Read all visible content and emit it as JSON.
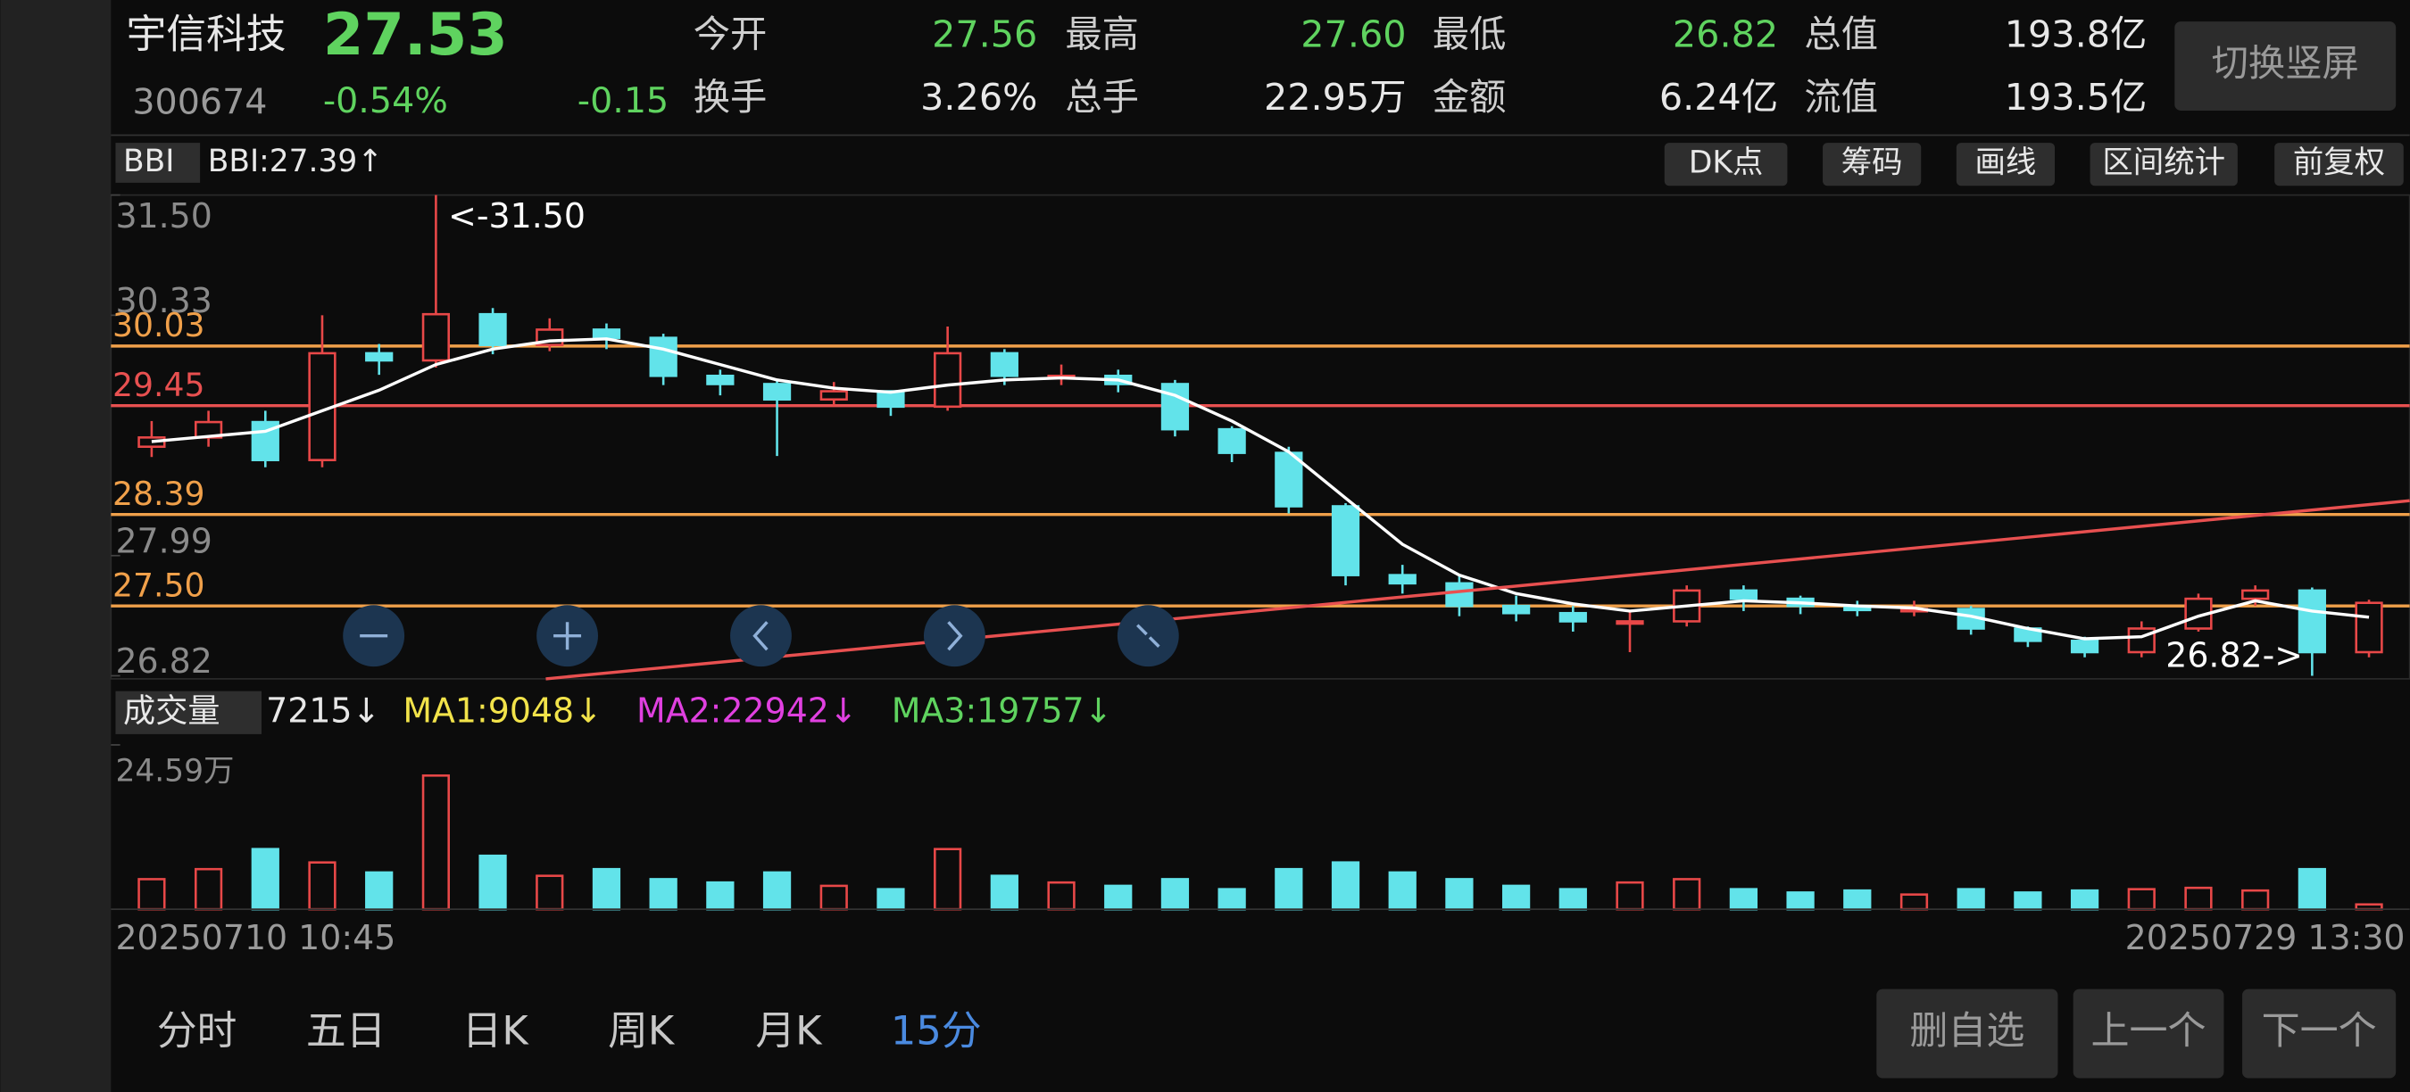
{
  "header": {
    "name": "宇信科技",
    "price": "27.53",
    "code": "300674",
    "change_pct": "-0.54%",
    "change": "-0.15",
    "stats": [
      {
        "label": "今开",
        "value": "27.56"
      },
      {
        "label": "最高",
        "value": "27.60"
      },
      {
        "label": "最低",
        "value": "26.82"
      },
      {
        "label": "总值",
        "value": "193.8亿"
      },
      {
        "label": "换手",
        "value": "3.26%"
      },
      {
        "label": "总手",
        "value": "22.95万"
      },
      {
        "label": "金额",
        "value": "6.24亿"
      },
      {
        "label": "流值",
        "value": "193.5亿"
      }
    ],
    "switch_button": "切换竖屏"
  },
  "toolbar": {
    "indicator": "BBI",
    "indicator_value": "BBI:27.39↑",
    "buttons": [
      "DK点",
      "筹码",
      "画线",
      "区间统计",
      "前复权"
    ]
  },
  "chart_data": [
    {
      "type": "candlestick",
      "ylim": [
        26.82,
        31.5
      ],
      "yticks": [
        {
          "value": 31.5,
          "label": "31.50"
        },
        30.33,
        27.99,
        26.82
      ],
      "levels": [
        {
          "value": 30.03,
          "label": "30.03",
          "color": "#f0a04a"
        },
        {
          "value": 29.45,
          "label": "29.45",
          "color": "#e85050"
        },
        {
          "value": 28.39,
          "label": "28.39",
          "color": "#f0a04a"
        },
        {
          "value": 27.5,
          "label": "27.50",
          "color": "#f0a04a"
        }
      ],
      "up_color": "#e84848",
      "down_color": "#62e3ea",
      "bbi_color": "#ffffff",
      "annotations": [
        "<-31.50",
        "26.82->"
      ],
      "open": [
        29.05,
        29.14,
        29.29,
        28.92,
        29.96,
        29.89,
        30.34,
        30.04,
        30.19,
        30.11,
        29.74,
        29.66,
        29.51,
        29.59,
        29.44,
        29.96,
        29.74,
        29.74,
        29.66,
        29.22,
        28.99,
        28.47,
        27.8,
        27.72,
        27.5,
        27.43,
        27.35,
        27.35,
        27.65,
        27.57,
        27.5,
        27.46,
        27.47,
        27.28,
        27.16,
        27.05,
        27.28,
        27.57,
        27.65,
        27.05
      ],
      "high": [
        29.3,
        29.4,
        29.4,
        30.33,
        30.05,
        31.5,
        30.4,
        30.3,
        30.25,
        30.15,
        29.8,
        29.7,
        29.68,
        29.6,
        30.22,
        30.0,
        29.85,
        29.8,
        29.7,
        29.25,
        29.05,
        28.5,
        27.9,
        27.8,
        27.6,
        27.5,
        27.45,
        27.7,
        27.7,
        27.6,
        27.55,
        27.55,
        27.5,
        27.3,
        27.2,
        27.35,
        27.62,
        27.7,
        27.68,
        27.56
      ],
      "low": [
        28.95,
        29.05,
        28.85,
        28.85,
        29.75,
        29.82,
        29.95,
        29.98,
        30.0,
        29.65,
        29.55,
        28.96,
        29.45,
        29.35,
        29.4,
        29.65,
        29.65,
        29.58,
        29.15,
        28.9,
        28.4,
        27.7,
        27.62,
        27.4,
        27.35,
        27.25,
        27.05,
        27.3,
        27.45,
        27.42,
        27.4,
        27.4,
        27.22,
        27.1,
        27.0,
        27.0,
        27.25,
        27.5,
        26.82,
        27.0
      ],
      "close": [
        29.14,
        29.29,
        28.92,
        29.96,
        29.89,
        30.34,
        30.04,
        30.19,
        30.11,
        29.74,
        29.66,
        29.51,
        29.59,
        29.44,
        29.96,
        29.74,
        29.74,
        29.66,
        29.22,
        28.99,
        28.47,
        27.8,
        27.72,
        27.5,
        27.43,
        27.35,
        27.35,
        27.65,
        27.57,
        27.5,
        27.46,
        27.47,
        27.28,
        27.16,
        27.05,
        27.28,
        27.57,
        27.65,
        27.05,
        27.53
      ],
      "bbi": [
        29.1,
        29.15,
        29.2,
        29.4,
        29.6,
        29.85,
        30.0,
        30.08,
        30.1,
        30.0,
        29.85,
        29.7,
        29.62,
        29.58,
        29.65,
        29.7,
        29.72,
        29.7,
        29.55,
        29.3,
        29.0,
        28.55,
        28.1,
        27.8,
        27.62,
        27.52,
        27.45,
        27.5,
        27.55,
        27.53,
        27.5,
        27.48,
        27.4,
        27.28,
        27.18,
        27.2,
        27.4,
        27.55,
        27.45,
        27.39
      ]
    },
    {
      "type": "bar",
      "selector": "成交量",
      "current": "7215↓",
      "ma_labels": [
        {
          "text": "MA1:9048↓",
          "color": "#f2e34a"
        },
        {
          "text": "MA2:22942↓",
          "color": "#e040e0"
        },
        {
          "text": "MA3:19757↓",
          "color": "#5fd35f"
        }
      ],
      "ylim": [
        0,
        245900
      ],
      "yticks": [
        {
          "value": 245900,
          "label": "24.59万"
        }
      ],
      "values": [
        45000,
        60000,
        90000,
        70000,
        55000,
        200000,
        80000,
        50000,
        60000,
        45000,
        40000,
        55000,
        35000,
        30000,
        90000,
        50000,
        40000,
        35000,
        45000,
        30000,
        60000,
        70000,
        55000,
        45000,
        35000,
        30000,
        40000,
        45000,
        30000,
        25000,
        28000,
        22000,
        30000,
        25000,
        28000,
        30000,
        32000,
        28000,
        60000,
        7215
      ],
      "x_labels": [
        "20250710 10:45",
        "20250729 13:30"
      ]
    }
  ],
  "footer": {
    "tabs": [
      "分时",
      "五日",
      "日K",
      "周K",
      "月K",
      "15分"
    ],
    "buttons": [
      "删自选",
      "上一个",
      "下一个"
    ]
  }
}
